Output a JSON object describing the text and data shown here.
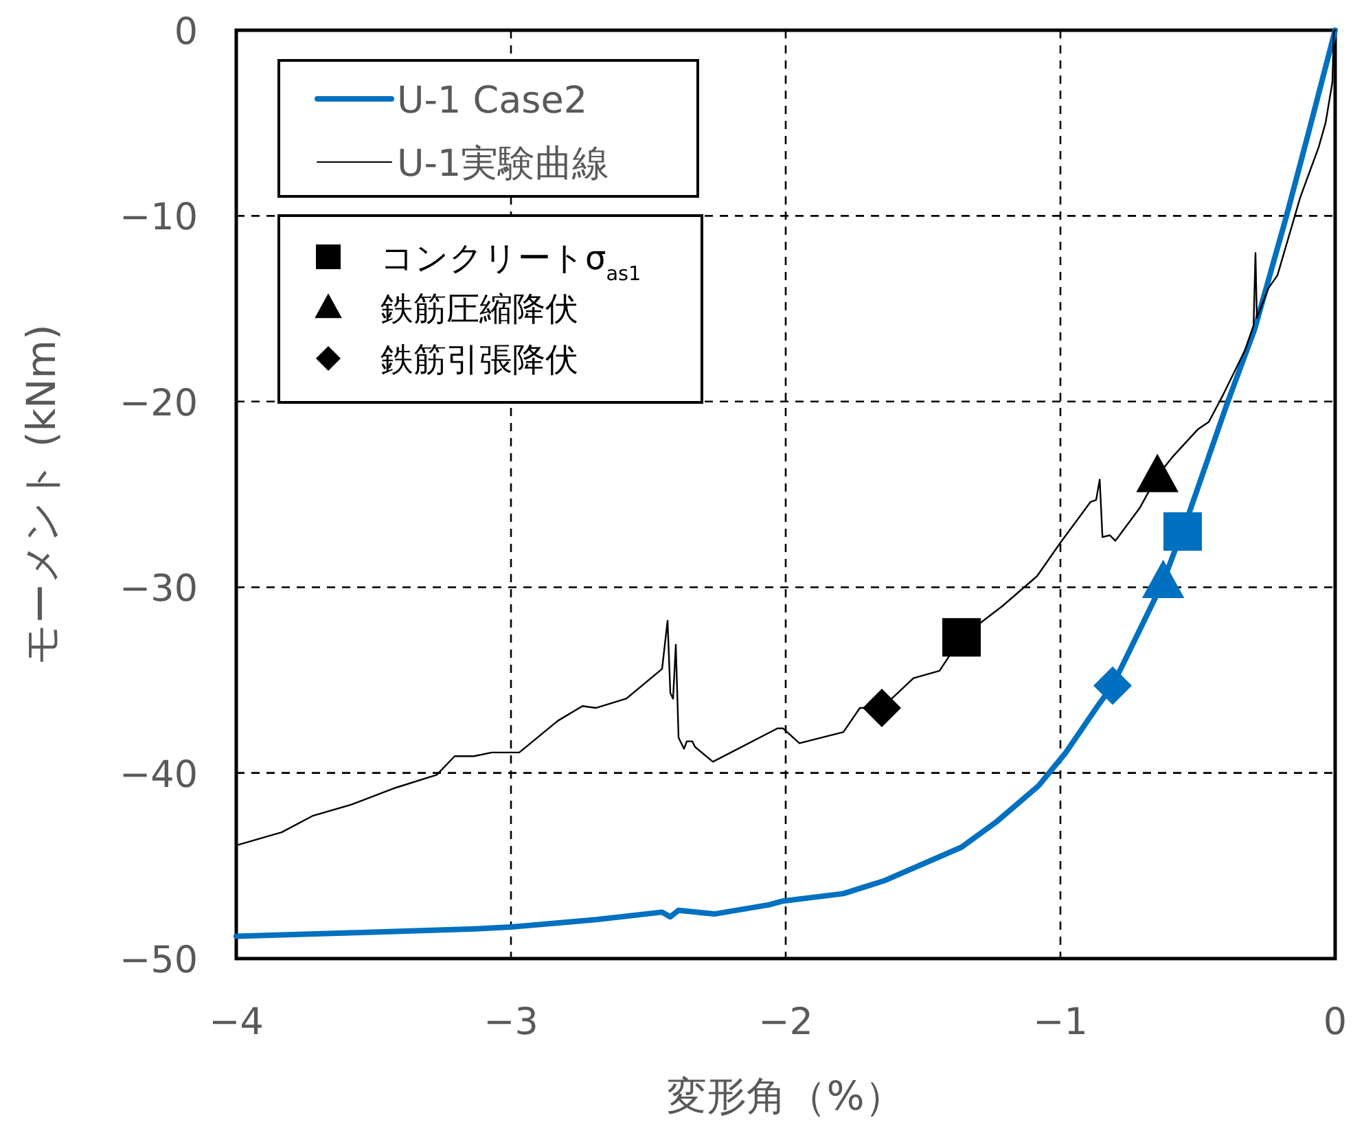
{
  "chart_data": {
    "type": "line",
    "xlabel": "変形角（%）",
    "ylabel": "モーメント (kNm)",
    "xlim": [
      -4,
      0
    ],
    "ylim": [
      -50,
      0
    ],
    "xticks": [
      {
        "value": -4,
        "label": "−4"
      },
      {
        "value": -3,
        "label": "−3"
      },
      {
        "value": -2,
        "label": "−2"
      },
      {
        "value": -1,
        "label": "−1"
      },
      0
    ],
    "yticks": [
      {
        "value": -50,
        "label": "−50"
      },
      {
        "value": -40,
        "label": "−40"
      },
      {
        "value": -30,
        "label": "−30"
      },
      {
        "value": -20,
        "label": "−20"
      },
      {
        "value": -10,
        "label": "−10"
      },
      0
    ],
    "grid": true,
    "legend": "top left",
    "series": [
      {
        "name": "U-1 Case2",
        "color": "#0070c0",
        "x": [
          -4.0,
          -3.56,
          -3.13,
          -3.0,
          -2.69,
          -2.45,
          -2.42,
          -2.39,
          -2.26,
          -2.06,
          -2.01,
          -1.79,
          -1.64,
          -1.36,
          -1.23,
          -1.08,
          -0.98,
          -0.86,
          -0.81,
          -0.626,
          -0.57,
          -0.555,
          -0.393,
          -0.293,
          -0.177,
          -0.093,
          0
        ],
        "values": [
          -48.8,
          -48.6,
          -48.4,
          -48.3,
          -47.9,
          -47.5,
          -47.75,
          -47.4,
          -47.6,
          -47.1,
          -46.9,
          -46.5,
          -45.8,
          -44.0,
          -42.6,
          -40.7,
          -38.9,
          -36.3,
          -35.3,
          -29.7,
          -27.5,
          -27.0,
          -20.1,
          -16.1,
          -10.0,
          -5.3,
          0
        ]
      },
      {
        "name": "U-1実験曲線",
        "color": "#000000",
        "x": [
          -4.0,
          -3.835,
          -3.72,
          -3.58,
          -3.42,
          -3.27,
          -3.205,
          -3.135,
          -3.07,
          -2.97,
          -2.83,
          -2.74,
          -2.69,
          -2.58,
          -2.45,
          -2.43,
          -2.42,
          -2.41,
          -2.4,
          -2.39,
          -2.37,
          -2.36,
          -2.34,
          -2.33,
          -2.265,
          -2.03,
          -2.01,
          -1.95,
          -1.79,
          -1.73,
          -1.65,
          -1.535,
          -1.44,
          -1.36,
          -1.21,
          -1.085,
          -1.0,
          -0.89,
          -0.87,
          -0.857,
          -0.847,
          -0.82,
          -0.8,
          -0.78,
          -0.71,
          -0.647,
          -0.593,
          -0.5,
          -0.46,
          -0.41,
          -0.327,
          -0.297,
          -0.29,
          -0.285,
          -0.243,
          -0.21,
          -0.127,
          -0.06,
          -0.035,
          -0.01,
          -0.005,
          0
        ],
        "values": [
          -43.9,
          -43.2,
          -42.3,
          -41.7,
          -40.8,
          -40.1,
          -39.1,
          -39.1,
          -38.9,
          -38.9,
          -37.2,
          -36.4,
          -36.5,
          -36.0,
          -34.4,
          -31.8,
          -35.7,
          -36.0,
          -33.1,
          -38.1,
          -38.7,
          -38.3,
          -38.3,
          -38.6,
          -39.4,
          -37.6,
          -37.6,
          -38.4,
          -37.8,
          -36.5,
          -36.5,
          -34.9,
          -34.5,
          -32.7,
          -31.0,
          -29.4,
          -27.6,
          -25.4,
          -25.3,
          -24.2,
          -27.3,
          -27.2,
          -27.5,
          -27.1,
          -25.7,
          -24.0,
          -23.0,
          -21.5,
          -21.1,
          -19.7,
          -17.2,
          -15.9,
          -12.0,
          -15.5,
          -13.9,
          -13.2,
          -9.0,
          -6.3,
          -5.0,
          -2.8,
          -0.1,
          0
        ]
      },
      {
        "name": "コンクリートσ$_{as1}$",
        "type": "scatter",
        "marker": "square",
        "colors": [
          "#000000",
          "#0070c0"
        ],
        "x": [
          -1.36,
          -0.555
        ],
        "values": [
          -32.7,
          -27.0
        ]
      },
      {
        "name": "鉄筋圧縮降伏",
        "type": "scatter",
        "marker": "triangle",
        "colors": [
          "#000000",
          "#0070c0"
        ],
        "x": [
          -0.647,
          -0.626
        ],
        "values": [
          -24.0,
          -29.7
        ]
      },
      {
        "name": "鉄筋引張降伏",
        "type": "scatter",
        "marker": "diamond",
        "colors": [
          "#000000",
          "#0070c0"
        ],
        "x": [
          -1.65,
          -0.81
        ],
        "values": [
          -36.5,
          -35.3
        ]
      }
    ]
  }
}
